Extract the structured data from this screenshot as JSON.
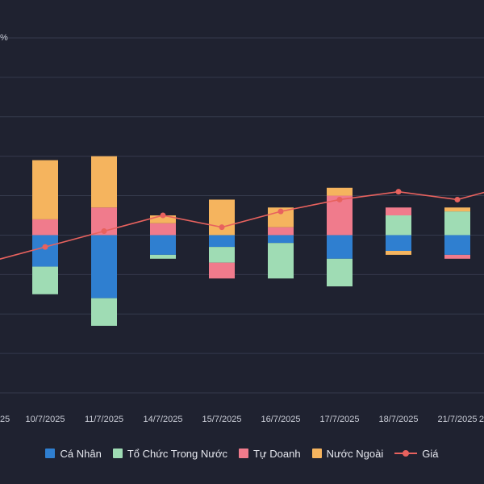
{
  "corner_label": "%",
  "chart_data": {
    "type": "bar",
    "stacked": true,
    "categories": [
      "10/7/2025",
      "11/7/2025",
      "14/7/2025",
      "15/7/2025",
      "16/7/2025",
      "17/7/2025",
      "18/7/2025",
      "21/7/2025"
    ],
    "x_tick_labels": [
      "25",
      "10/7/2025",
      "11/7/2025",
      "14/7/2025",
      "15/7/2025",
      "16/7/2025",
      "17/7/2025",
      "18/7/2025",
      "21/7/2025",
      "2"
    ],
    "series": [
      {
        "name": "Cá Nhân",
        "color": "#2f7fd0",
        "values": [
          -0.8,
          -1.6,
          -0.5,
          -0.3,
          -0.2,
          -0.6,
          -0.4,
          -0.5
        ]
      },
      {
        "name": "Tổ Chức Trong Nước",
        "color": "#9fdcb4",
        "values": [
          -0.7,
          -0.7,
          -0.1,
          -0.4,
          -0.9,
          -0.7,
          0.5,
          0.6
        ]
      },
      {
        "name": "Tự Doanh",
        "color": "#f07b8c",
        "values": [
          0.4,
          0.7,
          0.3,
          -0.4,
          0.2,
          1.0,
          0.2,
          -0.1
        ]
      },
      {
        "name": "Nước Ngoài",
        "color": "#f5b45e",
        "values": [
          1.5,
          1.3,
          0.2,
          0.9,
          0.5,
          0.2,
          -0.1,
          0.1
        ]
      }
    ],
    "line_series": {
      "name": "Giá",
      "color": "#e8625e",
      "values": [
        -0.3,
        0.1,
        0.5,
        0.2,
        0.6,
        0.9,
        1.1,
        0.9
      ]
    },
    "ylim": [
      -4,
      5
    ],
    "grid": true,
    "legend_position": "bottom-center"
  }
}
